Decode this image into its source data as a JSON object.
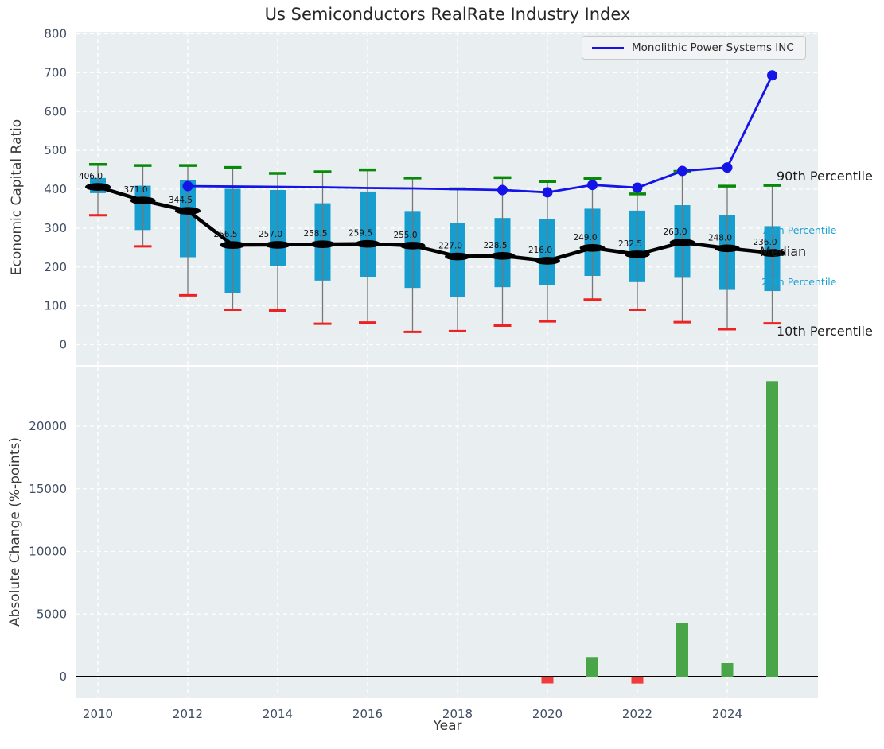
{
  "title": "Us Semiconductors RealRate Industry Index",
  "legend": {
    "label": "Monolithic Power Systems INC"
  },
  "axes": {
    "top_ylabel": "Economic Capital Ratio",
    "bottom_ylabel": "Absolute Change (%-points)",
    "xlabel": "Year",
    "top_yticks": [
      0,
      100,
      200,
      300,
      400,
      500,
      600,
      700,
      800
    ],
    "bottom_yticks": [
      0,
      5000,
      10000,
      15000,
      20000
    ],
    "xticks": [
      2010,
      2012,
      2014,
      2016,
      2018,
      2020,
      2022,
      2024
    ]
  },
  "side_labels": {
    "p90": "90th Percentile",
    "p75": "75th Percentile",
    "median": "Median",
    "p25": "25th Percentile",
    "p10": "10th Percentile"
  },
  "colors": {
    "panel_bg": "#e9eef0",
    "grid": "#ffffff",
    "tick_text": "#3f4c63",
    "box_fill": "#179ecf",
    "cap_green": "#078a07",
    "cap_red": "#ee2222",
    "bar_green": "#48a548",
    "bar_red": "#f23c3c",
    "company_line": "#1414e8",
    "median_line": "#000000",
    "whisker": "#777777",
    "median_label_text": "#111111"
  },
  "chart_data": [
    {
      "type": "boxplot+line",
      "title": "Us Semiconductors RealRate Industry Index",
      "ylabel": "Economic Capital Ratio",
      "ylim": [
        -55,
        805
      ],
      "grid": true,
      "legend_position": "upper right",
      "years": [
        2010,
        2011,
        2012,
        2013,
        2014,
        2015,
        2016,
        2017,
        2018,
        2019,
        2020,
        2021,
        2022,
        2023,
        2024,
        2025
      ],
      "percentiles": {
        "p10": [
          333,
          253,
          127,
          90,
          88,
          54,
          57,
          33,
          35,
          49,
          60,
          116,
          90,
          58,
          40,
          55
        ],
        "p25": [
          390,
          295,
          225,
          133,
          203,
          165,
          173,
          146,
          123,
          148,
          153,
          177,
          161,
          172,
          141,
          138
        ],
        "median": [
          406.0,
          371.0,
          344.5,
          256.5,
          257.0,
          258.5,
          259.5,
          255.0,
          227.0,
          228.5,
          216.0,
          249.0,
          232.5,
          263.0,
          248.0,
          236.0
        ],
        "p75": [
          429,
          409,
          424,
          401,
          398,
          364,
          394,
          344,
          314,
          326,
          323,
          350,
          345,
          359,
          334,
          305
        ],
        "p90": [
          464,
          461,
          461,
          456,
          441,
          445,
          450,
          429,
          401,
          430,
          420,
          428,
          388,
          446,
          408,
          410
        ]
      },
      "median_labels": [
        "406.0",
        "371.0",
        "344.5",
        "256.5",
        "257.0",
        "258.5",
        "259.5",
        "255.0",
        "227.0",
        "228.5",
        "216.0",
        "249.0",
        "232.5",
        "263.0",
        "248.0",
        "236.0"
      ],
      "series": [
        {
          "name": "Monolithic Power Systems INC",
          "x": [
            2012,
            2013,
            2014,
            2015,
            2016,
            2017,
            2018,
            2019,
            2020,
            2021,
            2022,
            2023,
            2024,
            2025
          ],
          "values": [
            408,
            407,
            406,
            405,
            403,
            402,
            400,
            398,
            392,
            411,
            404,
            447,
            456,
            693
          ],
          "marker_years": [
            2012,
            2019,
            2020,
            2021,
            2022,
            2023,
            2024,
            2025
          ]
        }
      ]
    },
    {
      "type": "bar",
      "ylabel": "Absolute Change (%-points)",
      "xlabel": "Year",
      "ylim": [
        -1700,
        24700
      ],
      "grid": true,
      "x": [
        2010,
        2011,
        2012,
        2013,
        2014,
        2015,
        2016,
        2017,
        2018,
        2019,
        2020,
        2021,
        2022,
        2023,
        2024,
        2025
      ],
      "values": [
        0,
        0,
        0,
        0,
        0,
        0,
        0,
        0,
        0,
        0,
        -540,
        1570,
        -550,
        4280,
        1080,
        23600
      ]
    }
  ]
}
